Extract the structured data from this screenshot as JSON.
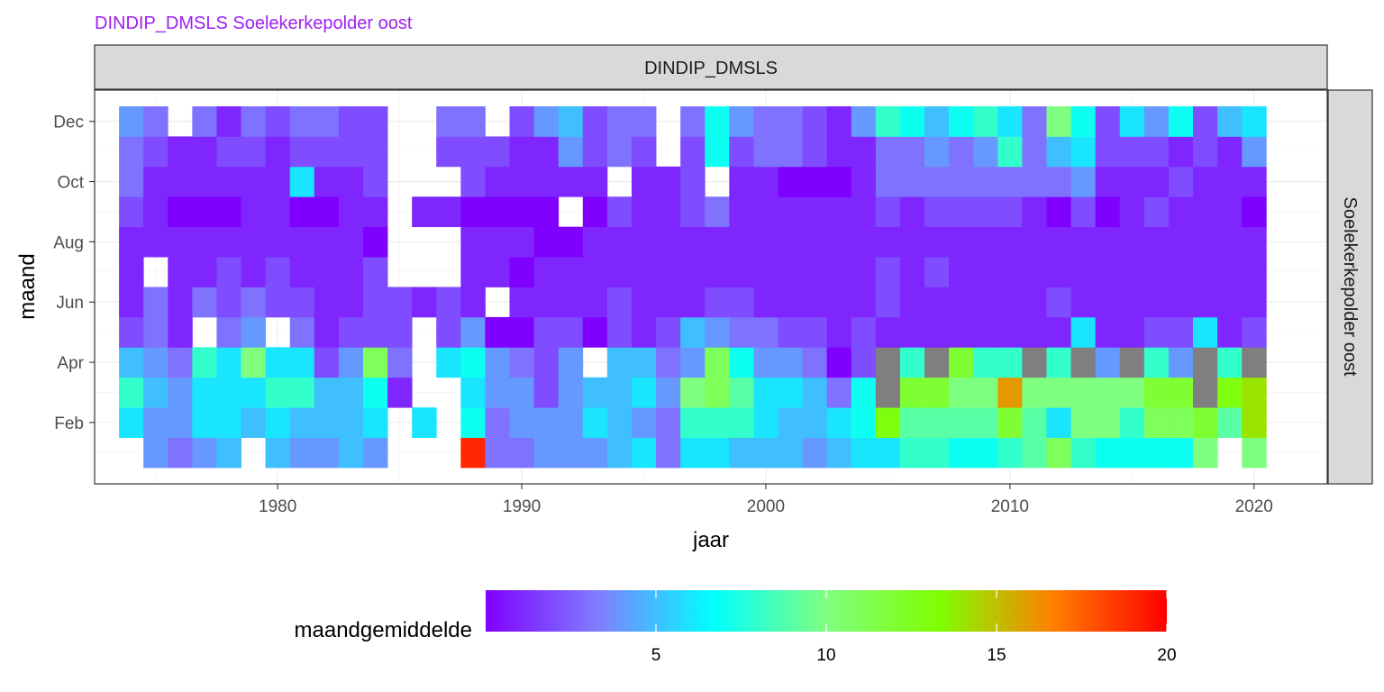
{
  "chart_data": {
    "type": "heatmap",
    "title": "DINDIP_DMSLS Soelekerkepolder oost",
    "title_color": "#A020F0",
    "facet_top": "DINDIP_DMSLS",
    "facet_right": "Soelekerkepolder oost",
    "xlabel": "jaar",
    "ylabel": "maand",
    "xlim": [
      1972.5,
      2023
    ],
    "x_ticks": [
      1980,
      1990,
      2000,
      2010,
      2020
    ],
    "y_ticks": [
      {
        "month": 2,
        "label": "Feb"
      },
      {
        "month": 4,
        "label": "Apr"
      },
      {
        "month": 6,
        "label": "Jun"
      },
      {
        "month": 8,
        "label": "Aug"
      },
      {
        "month": 10,
        "label": "Oct"
      },
      {
        "month": 12,
        "label": "Dec"
      }
    ],
    "years": [
      1974,
      1975,
      1976,
      1977,
      1978,
      1979,
      1980,
      1981,
      1982,
      1983,
      1984,
      1985,
      1986,
      1987,
      1988,
      1989,
      1990,
      1991,
      1992,
      1993,
      1994,
      1995,
      1996,
      1997,
      1998,
      1999,
      2000,
      2001,
      2002,
      2003,
      2004,
      2005,
      2006,
      2007,
      2008,
      2009,
      2010,
      2011,
      2012,
      2013,
      2014,
      2015,
      2016,
      2017,
      2018,
      2019,
      2020
    ],
    "values_by_month": {
      "1": [
        null,
        4,
        3,
        4,
        5,
        null,
        5,
        4,
        4,
        5,
        4,
        null,
        null,
        null,
        19,
        3,
        3,
        4,
        4,
        4,
        5,
        6,
        3,
        6,
        6,
        5,
        5,
        5,
        4,
        5,
        6,
        6,
        8,
        8,
        7,
        7,
        8,
        9,
        11,
        8,
        7,
        7,
        7,
        7,
        10,
        null,
        10
      ],
      "2": [
        6,
        4,
        4,
        6,
        6,
        5,
        6,
        5,
        5,
        5,
        6,
        null,
        6,
        null,
        7,
        3,
        4,
        4,
        4,
        6,
        5,
        4,
        3,
        8,
        8,
        8,
        6,
        5,
        5,
        6,
        7,
        13,
        9,
        9,
        9,
        9,
        12,
        9,
        6,
        10,
        10,
        8,
        11,
        11,
        12,
        9,
        14
      ],
      "3": [
        8,
        5,
        4,
        6,
        6,
        6,
        8,
        8,
        5,
        5,
        7,
        1,
        null,
        null,
        6,
        4,
        4,
        2,
        4,
        5,
        5,
        6,
        4,
        10,
        11,
        9,
        6,
        6,
        5,
        3,
        7,
        null,
        12,
        12,
        10,
        10,
        16,
        10,
        10,
        10,
        10,
        10,
        12,
        12,
        null,
        13,
        14
      ],
      "4": [
        5,
        4,
        3,
        8,
        6,
        10,
        6,
        6,
        2,
        4,
        11,
        3,
        null,
        6,
        7,
        4,
        3,
        2,
        4,
        null,
        5,
        5,
        3,
        4,
        11,
        7,
        4,
        4,
        3,
        0,
        2,
        null,
        8,
        null,
        12,
        8,
        8,
        null,
        8,
        null,
        4,
        null,
        8,
        4,
        null,
        8,
        null
      ],
      "5": [
        2,
        3,
        1,
        null,
        3,
        4,
        null,
        3,
        1,
        2,
        2,
        2,
        null,
        2,
        4,
        0,
        0,
        2,
        2,
        0,
        2,
        1,
        2,
        5,
        4,
        3,
        3,
        2,
        2,
        1,
        2,
        1,
        1,
        1,
        1,
        1,
        1,
        1,
        1,
        6,
        1,
        1,
        2,
        2,
        6,
        1,
        2
      ],
      "6": [
        1,
        3,
        1,
        3,
        2,
        3,
        2,
        2,
        1,
        1,
        2,
        2,
        1,
        2,
        1,
        null,
        1,
        1,
        1,
        1,
        2,
        1,
        1,
        1,
        2,
        2,
        1,
        1,
        1,
        1,
        1,
        2,
        1,
        1,
        1,
        1,
        1,
        1,
        2,
        1,
        1,
        1,
        1,
        1,
        1,
        1,
        1
      ],
      "7": [
        1,
        null,
        1,
        1,
        2,
        1,
        2,
        1,
        1,
        1,
        2,
        null,
        null,
        null,
        1,
        1,
        0,
        1,
        1,
        1,
        1,
        1,
        1,
        1,
        1,
        1,
        1,
        1,
        1,
        1,
        1,
        2,
        1,
        2,
        1,
        1,
        1,
        1,
        1,
        1,
        1,
        1,
        1,
        1,
        1,
        1,
        1
      ],
      "8": [
        1,
        1,
        1,
        1,
        1,
        1,
        1,
        1,
        1,
        1,
        0,
        null,
        null,
        null,
        1,
        1,
        1,
        0,
        0,
        1,
        1,
        1,
        1,
        1,
        1,
        1,
        1,
        1,
        1,
        1,
        1,
        1,
        1,
        1,
        1,
        1,
        1,
        1,
        1,
        1,
        1,
        1,
        1,
        1,
        1,
        1,
        1
      ],
      "9": [
        2,
        1,
        0,
        0,
        0,
        1,
        1,
        0,
        0,
        1,
        1,
        null,
        1,
        1,
        0,
        0,
        0,
        0,
        null,
        0,
        2,
        1,
        1,
        2,
        3,
        1,
        1,
        1,
        1,
        1,
        1,
        2,
        1,
        2,
        2,
        2,
        2,
        1,
        0,
        2,
        0,
        1,
        2,
        1,
        1,
        1,
        0
      ],
      "10": [
        3,
        1,
        1,
        1,
        1,
        1,
        1,
        6,
        1,
        1,
        2,
        null,
        null,
        null,
        2,
        1,
        1,
        1,
        1,
        1,
        null,
        1,
        1,
        2,
        null,
        1,
        1,
        0,
        0,
        0,
        1,
        3,
        3,
        3,
        3,
        3,
        3,
        3,
        3,
        4,
        1,
        1,
        1,
        2,
        1,
        1,
        1
      ],
      "11": [
        3,
        2,
        1,
        1,
        2,
        2,
        1,
        2,
        2,
        2,
        2,
        null,
        null,
        2,
        2,
        2,
        1,
        1,
        4,
        2,
        3,
        2,
        null,
        2,
        7,
        2,
        3,
        3,
        2,
        1,
        1,
        3,
        3,
        4,
        3,
        4,
        8,
        3,
        5,
        6,
        2,
        2,
        2,
        1,
        2,
        1,
        4
      ],
      "12": [
        4,
        3,
        null,
        3,
        1,
        3,
        2,
        3,
        3,
        2,
        2,
        null,
        null,
        3,
        3,
        null,
        2,
        4,
        5,
        2,
        3,
        3,
        null,
        3,
        7,
        4,
        3,
        3,
        2,
        1,
        4,
        8,
        7,
        5,
        7,
        8,
        6,
        3,
        10,
        7,
        2,
        6,
        4,
        7,
        2,
        5,
        6
      ]
    },
    "missing_color": "#7F7F7F",
    "legend": {
      "title": "maandgemiddelde",
      "placement": "bottom",
      "range": [
        0,
        20
      ],
      "ticks": [
        5,
        10,
        15,
        20
      ],
      "palette": [
        "#7F00FF",
        "#7F7FFF",
        "#00FFFF",
        "#7FFF7F",
        "#7FFF00",
        "#FF7F00",
        "#FF0000"
      ]
    }
  }
}
